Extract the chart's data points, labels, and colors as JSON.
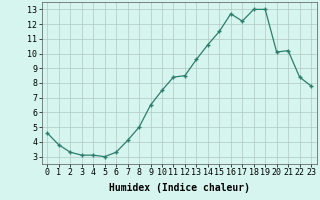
{
  "x": [
    0,
    1,
    2,
    3,
    4,
    5,
    6,
    7,
    8,
    9,
    10,
    11,
    12,
    13,
    14,
    15,
    16,
    17,
    18,
    19,
    20,
    21,
    22,
    23
  ],
  "y": [
    4.6,
    3.8,
    3.3,
    3.1,
    3.1,
    3.0,
    3.3,
    4.1,
    5.0,
    6.5,
    7.5,
    8.4,
    8.5,
    9.6,
    10.6,
    11.5,
    12.7,
    12.2,
    13.0,
    13.0,
    10.1,
    10.2,
    8.4,
    7.8
  ],
  "line_color": "#2d7d6e",
  "marker": "+",
  "marker_size": 3,
  "bg_color": "#d5f5ee",
  "grid_color": "#b0c8c4",
  "xlabel": "Humidex (Indice chaleur)",
  "xlabel_fontsize": 7,
  "tick_fontsize": 6,
  "ylabel_ticks": [
    3,
    4,
    5,
    6,
    7,
    8,
    9,
    10,
    11,
    12,
    13
  ],
  "xlim": [
    -0.5,
    23.5
  ],
  "ylim": [
    2.5,
    13.5
  ]
}
